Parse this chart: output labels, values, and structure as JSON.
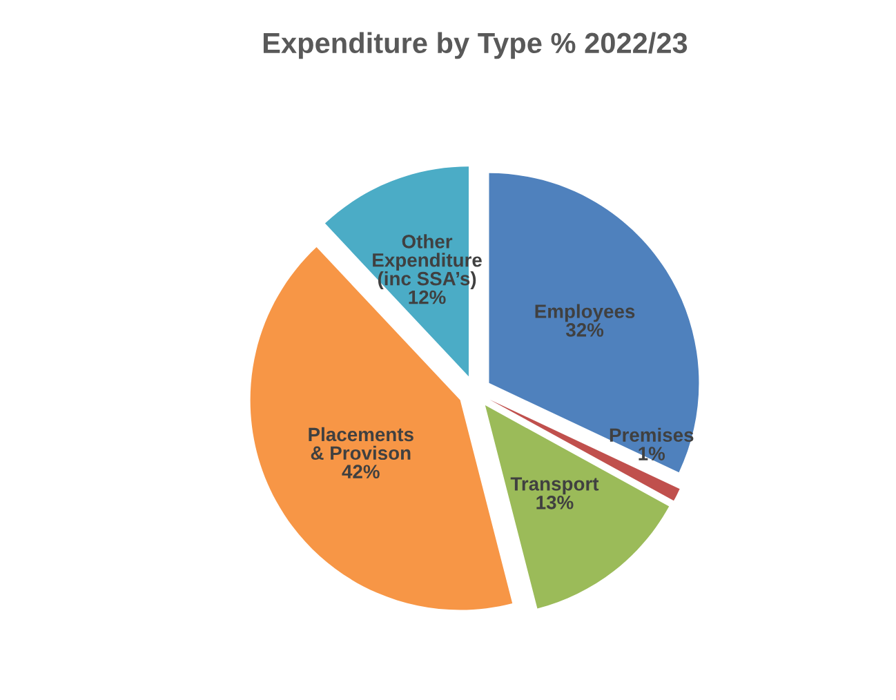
{
  "chart_data": {
    "type": "pie",
    "title": "Expenditure by Type % 2022/23",
    "categories": [
      "Employees",
      "Premises",
      "Transport",
      "Placements\n& Provison",
      "Other\nExpenditure\n(inc SSA’s)"
    ],
    "values": [
      32,
      1,
      13,
      42,
      12
    ],
    "colors": [
      "#4f81bd",
      "#c0504d",
      "#9bbb59",
      "#f79646",
      "#4bacc6"
    ],
    "value_labels": [
      "32%",
      "1%",
      "13%",
      "42%",
      "12%"
    ],
    "legend": false
  }
}
